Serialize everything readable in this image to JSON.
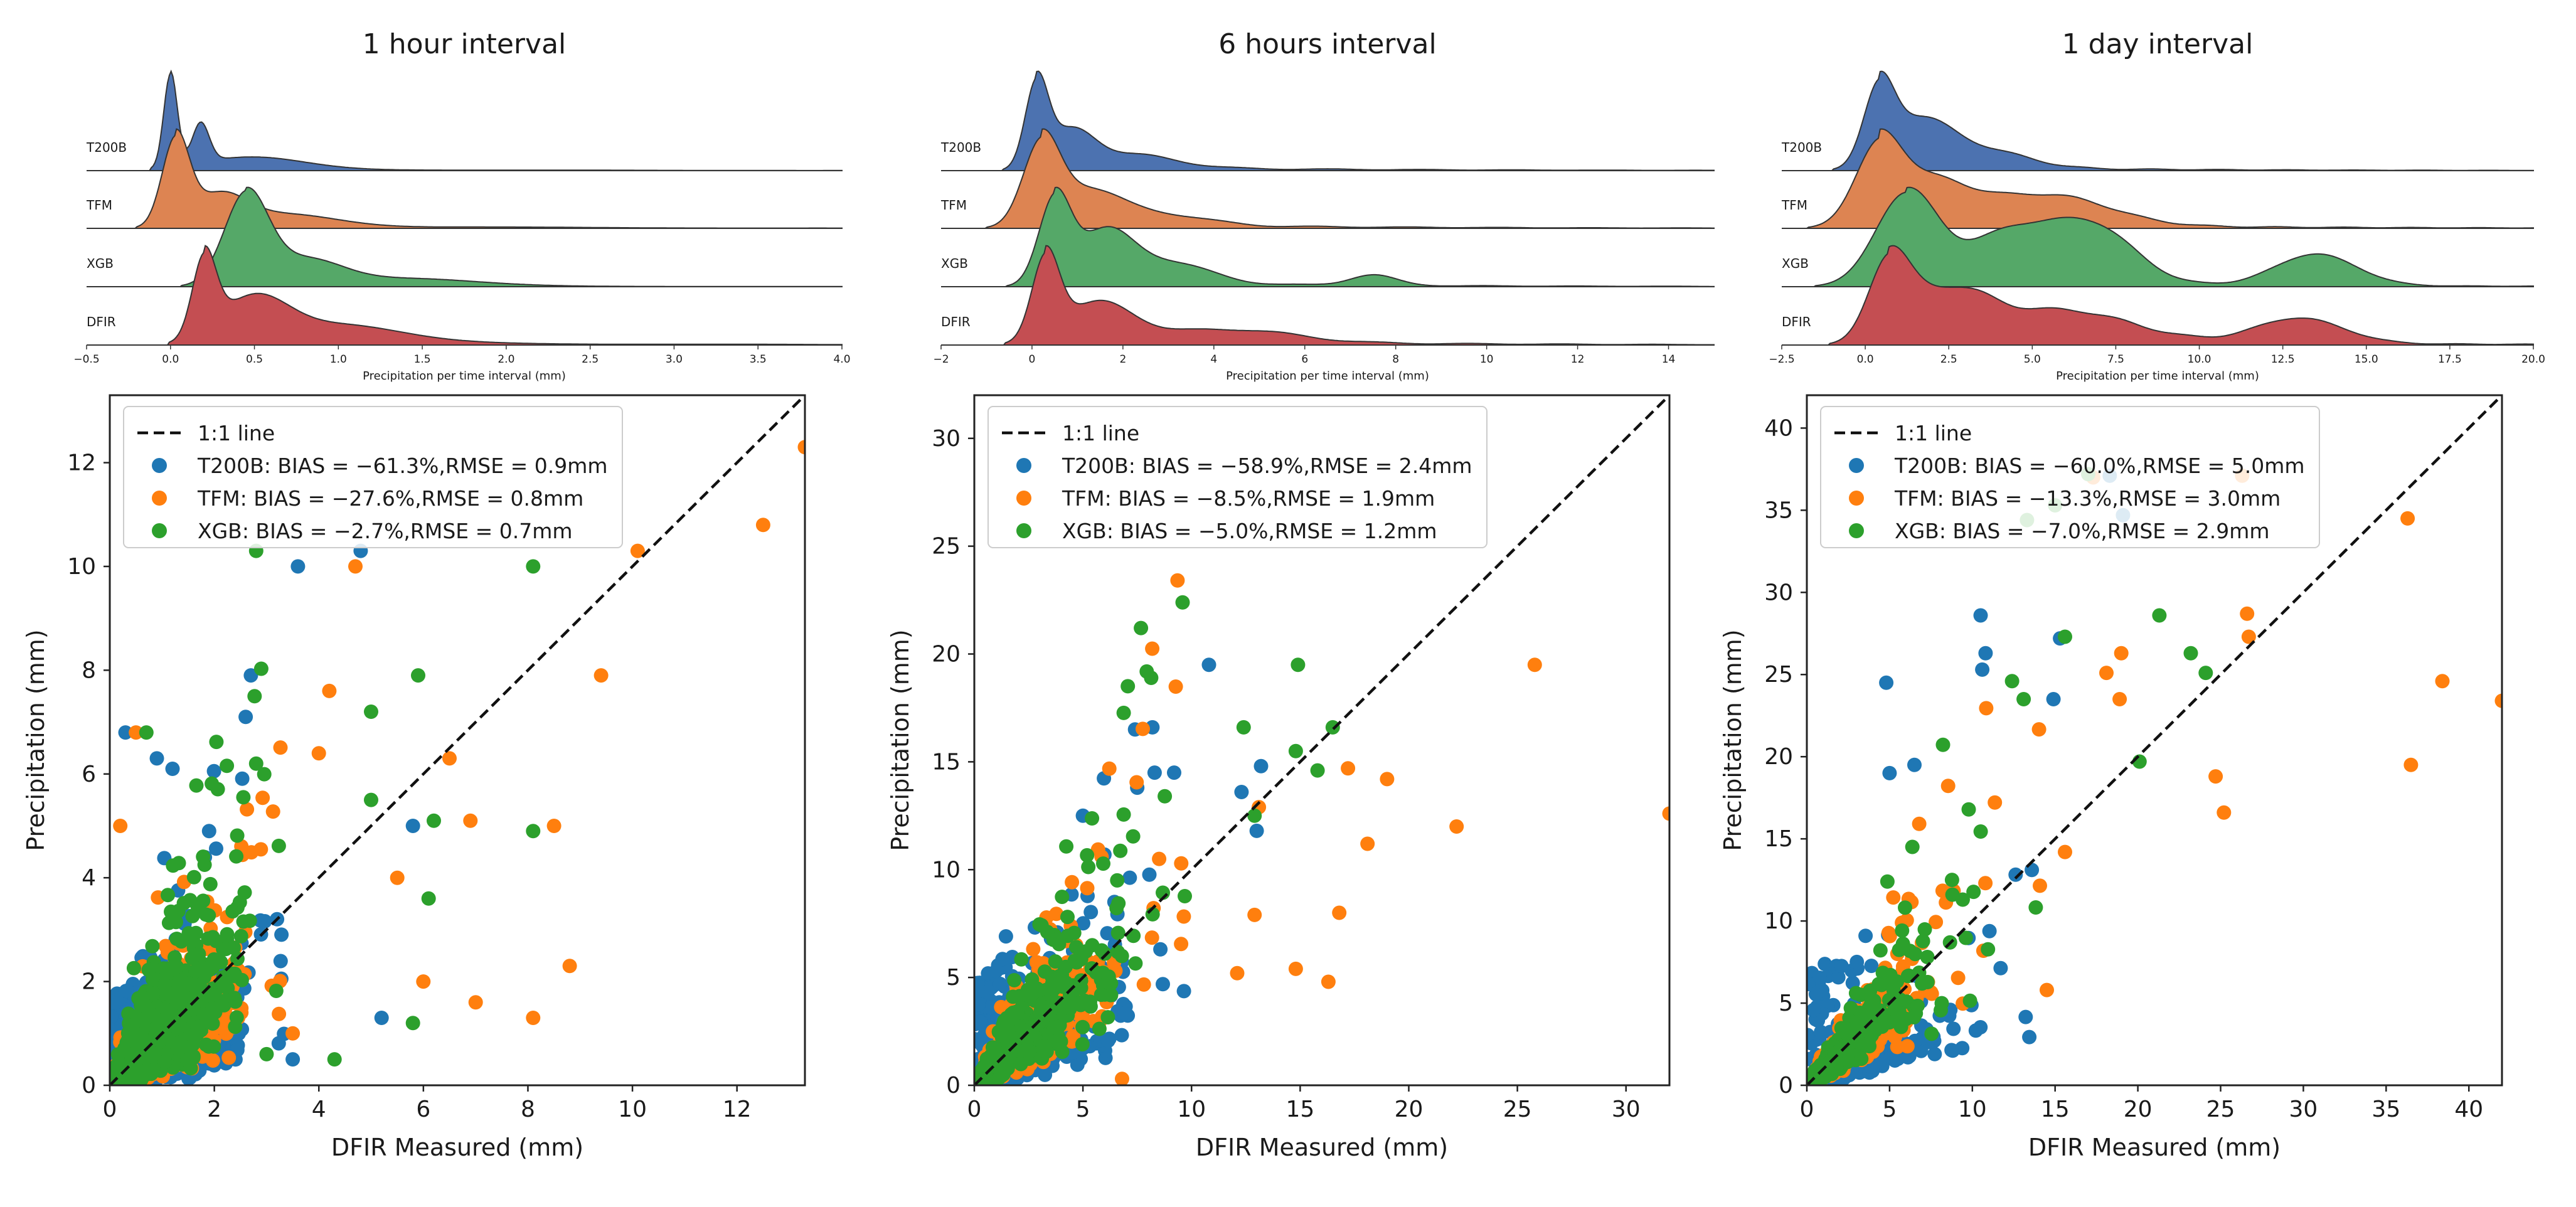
{
  "colors": {
    "T200B": "#1f77b4",
    "TFM": "#ff7f0e",
    "XGB": "#2ca02c",
    "ridge_T200B": "#4c72b0",
    "ridge_TFM": "#dd8452",
    "ridge_XGB": "#55a868",
    "ridge_DFIR": "#c44e52"
  },
  "chart_data": [
    {
      "type": "scatter",
      "title": "1 hour interval",
      "xlabel": "DFIR Measured (mm)",
      "ylabel": "Precipitation (mm)",
      "xlim": [
        0,
        13.3
      ],
      "ylim": [
        0,
        13.3
      ],
      "xticks": [
        0,
        2,
        4,
        6,
        8,
        10,
        12
      ],
      "yticks": [
        0,
        2,
        4,
        6,
        8,
        10,
        12
      ],
      "legend": {
        "placement": "top-left",
        "line": "1:1 line",
        "entries": [
          {
            "series": "T200B",
            "label": "T200B: BIAS = −61.3%,RMSE = 0.9mm"
          },
          {
            "series": "TFM",
            "label": "TFM: BIAS = −27.6%,RMSE = 0.8mm"
          },
          {
            "series": "XGB",
            "label": "XGB: BIAS = −2.7%,RMSE = 0.7mm"
          }
        ]
      },
      "ridge": {
        "xlabel": "Precipitation per time interval (mm)",
        "xlim": [
          -0.5,
          4.0
        ],
        "xticks": [
          "−0.5",
          "0.0",
          "0.5",
          "1.0",
          "1.5",
          "2.0",
          "2.5",
          "3.0",
          "3.5",
          "4.0"
        ],
        "rows": [
          {
            "name": "T200B",
            "peaks": [
              {
                "x": 0.0,
                "h": 1.0,
                "w": 0.04
              },
              {
                "x": 0.18,
                "h": 0.42,
                "w": 0.05
              },
              {
                "x": 0.5,
                "h": 0.12,
                "w": 0.3
              }
            ],
            "tail": 0.03,
            "tailScale": 1.2
          },
          {
            "name": "TFM",
            "peaks": [
              {
                "x": 0.03,
                "h": 0.9,
                "w": 0.08
              },
              {
                "x": 0.3,
                "h": 0.28,
                "w": 0.15
              },
              {
                "x": 0.7,
                "h": 0.12,
                "w": 0.3
              }
            ],
            "tail": 0.05,
            "tailScale": 1.3
          },
          {
            "name": "XGB",
            "peaks": [
              {
                "x": 0.45,
                "h": 0.9,
                "w": 0.13
              },
              {
                "x": 0.8,
                "h": 0.25,
                "w": 0.22
              },
              {
                "x": 1.4,
                "h": 0.07,
                "w": 0.4
              }
            ],
            "tail": 0.03,
            "tailScale": 1.1
          },
          {
            "name": "DFIR",
            "peaks": [
              {
                "x": 0.2,
                "h": 0.85,
                "w": 0.07
              },
              {
                "x": 0.5,
                "h": 0.45,
                "w": 0.2
              },
              {
                "x": 1.0,
                "h": 0.18,
                "w": 0.35
              }
            ],
            "tail": 0.08,
            "tailScale": 1.3
          }
        ]
      },
      "gen": {
        "n": 1600,
        "lam": 1.0,
        "maxx": 2.6,
        "seed": 11,
        "ratio": {
          "T200B": 0.4,
          "TFM": 0.73,
          "XGB": 1.0
        },
        "sigma": 0.5,
        "nOut": 40
      },
      "extras": {
        "T200B": [
          [
            0.3,
            6.8
          ],
          [
            0.9,
            6.3
          ],
          [
            1.2,
            6.1
          ],
          [
            2.7,
            7.9
          ],
          [
            2.6,
            7.1
          ],
          [
            3.6,
            10.0
          ],
          [
            4.8,
            10.3
          ],
          [
            5.8,
            5.0
          ],
          [
            1.9,
            4.9
          ],
          [
            3.2,
            3.2
          ],
          [
            5.2,
            1.3
          ],
          [
            3.5,
            0.5
          ]
        ],
        "TFM": [
          [
            0.2,
            5.0
          ],
          [
            0.5,
            6.8
          ],
          [
            4.2,
            7.6
          ],
          [
            4.7,
            10.0
          ],
          [
            4.0,
            6.4
          ],
          [
            5.5,
            4.0
          ],
          [
            6.0,
            2.0
          ],
          [
            6.5,
            6.3
          ],
          [
            6.9,
            5.1
          ],
          [
            7.0,
            1.6
          ],
          [
            8.5,
            5.0
          ],
          [
            8.8,
            2.3
          ],
          [
            8.1,
            1.3
          ],
          [
            9.4,
            7.9
          ],
          [
            10.1,
            10.3
          ],
          [
            12.5,
            10.8
          ],
          [
            13.3,
            12.3
          ],
          [
            3.5,
            1.0
          ]
        ],
        "XGB": [
          [
            0.7,
            6.8
          ],
          [
            2.8,
            10.3
          ],
          [
            2.8,
            6.2
          ],
          [
            5.0,
            7.2
          ],
          [
            5.0,
            5.5
          ],
          [
            5.9,
            7.9
          ],
          [
            6.1,
            3.6
          ],
          [
            5.8,
            1.2
          ],
          [
            4.3,
            0.5
          ],
          [
            8.1,
            4.9
          ],
          [
            8.1,
            10.0
          ],
          [
            6.2,
            5.1
          ],
          [
            3.0,
            0.6
          ]
        ]
      }
    },
    {
      "type": "scatter",
      "title": "6 hours interval",
      "xlabel": "DFIR Measured (mm)",
      "ylabel": "Precipitation (mm)",
      "xlim": [
        0,
        32
      ],
      "ylim": [
        0,
        32
      ],
      "xticks": [
        0,
        5,
        10,
        15,
        20,
        25,
        30
      ],
      "yticks": [
        0,
        5,
        10,
        15,
        20,
        25,
        30
      ],
      "legend": {
        "placement": "top-left",
        "line": "1:1 line",
        "entries": [
          {
            "series": "T200B",
            "label": "T200B: BIAS = −58.9%,RMSE = 2.4mm"
          },
          {
            "series": "TFM",
            "label": "TFM: BIAS = −8.5%,RMSE = 1.9mm"
          },
          {
            "series": "XGB",
            "label": "XGB: BIAS = −5.0%,RMSE = 1.2mm"
          }
        ]
      },
      "ridge": {
        "xlabel": "Precipitation per time interval (mm)",
        "xlim": [
          -2,
          15
        ],
        "xticks": [
          "−2",
          "0",
          "2",
          "4",
          "6",
          "8",
          "10",
          "12",
          "14"
        ],
        "rows": [
          {
            "name": "T200B",
            "peaks": [
              {
                "x": 0.1,
                "h": 1.0,
                "w": 0.25
              },
              {
                "x": 0.9,
                "h": 0.42,
                "w": 0.5
              },
              {
                "x": 2.3,
                "h": 0.15,
                "w": 0.9
              }
            ],
            "tail": 0.06,
            "tailScale": 5.0
          },
          {
            "name": "TFM",
            "peaks": [
              {
                "x": 0.2,
                "h": 0.85,
                "w": 0.4
              },
              {
                "x": 1.2,
                "h": 0.35,
                "w": 0.7
              },
              {
                "x": 2.8,
                "h": 0.12,
                "w": 1.0
              }
            ],
            "tail": 0.06,
            "tailScale": 5.0
          },
          {
            "name": "XGB",
            "peaks": [
              {
                "x": 0.5,
                "h": 0.8,
                "w": 0.35
              },
              {
                "x": 1.6,
                "h": 0.45,
                "w": 0.6
              },
              {
                "x": 3.0,
                "h": 0.2,
                "w": 0.9
              },
              {
                "x": 7.5,
                "h": 0.1,
                "w": 0.5
              }
            ],
            "tail": 0.05,
            "tailScale": 5.0
          },
          {
            "name": "DFIR",
            "peaks": [
              {
                "x": 0.3,
                "h": 0.8,
                "w": 0.3
              },
              {
                "x": 1.5,
                "h": 0.35,
                "w": 0.8
              },
              {
                "x": 4.5,
                "h": 0.12,
                "w": 1.3
              }
            ],
            "tail": 0.08,
            "tailScale": 5.0
          }
        ]
      },
      "gen": {
        "n": 900,
        "lam": 2.6,
        "maxx": 7.5,
        "seed": 23,
        "ratio": {
          "T200B": 0.45,
          "TFM": 0.9,
          "XGB": 1.0
        },
        "sigma": 0.35,
        "nOut": 30
      },
      "extras": {
        "T200B": [
          [
            10.8,
            19.5
          ],
          [
            7.4,
            16.5
          ],
          [
            8.2,
            16.6
          ],
          [
            8.3,
            14.5
          ],
          [
            7.5,
            13.8
          ],
          [
            9.2,
            14.5
          ],
          [
            5.0,
            12.5
          ],
          [
            12.3,
            13.6
          ],
          [
            13.2,
            14.8
          ],
          [
            13.0,
            11.8
          ]
        ],
        "TFM": [
          [
            25.8,
            19.5
          ],
          [
            32.0,
            12.6
          ],
          [
            22.2,
            12.0
          ],
          [
            18.1,
            11.2
          ],
          [
            17.2,
            14.7
          ],
          [
            19.0,
            14.2
          ],
          [
            16.8,
            8.0
          ],
          [
            14.8,
            5.4
          ],
          [
            12.1,
            5.2
          ],
          [
            12.9,
            7.9
          ],
          [
            13.1,
            12.9
          ],
          [
            16.3,
            4.8
          ],
          [
            6.8,
            0.3
          ]
        ],
        "XGB": [
          [
            14.9,
            19.5
          ],
          [
            16.5,
            16.6
          ],
          [
            14.8,
            15.5
          ],
          [
            12.4,
            16.6
          ],
          [
            12.9,
            12.5
          ],
          [
            15.8,
            14.6
          ]
        ]
      }
    },
    {
      "type": "scatter",
      "title": "1 day interval",
      "xlabel": "DFIR Measured (mm)",
      "ylabel": "Precipitation (mm)",
      "xlim": [
        0,
        42
      ],
      "ylim": [
        0,
        42
      ],
      "xticks": [
        0,
        5,
        10,
        15,
        20,
        25,
        30,
        35,
        40
      ],
      "yticks": [
        0,
        5,
        10,
        15,
        20,
        25,
        30,
        35,
        40
      ],
      "legend": {
        "placement": "top-left",
        "line": "1:1 line",
        "entries": [
          {
            "series": "T200B",
            "label": "T200B: BIAS = −60.0%,RMSE = 5.0mm"
          },
          {
            "series": "TFM",
            "label": "TFM: BIAS = −13.3%,RMSE = 3.0mm"
          },
          {
            "series": "XGB",
            "label": "XGB: BIAS = −7.0%,RMSE = 2.9mm"
          }
        ]
      },
      "ridge": {
        "xlabel": "Precipitation per time interval (mm)",
        "xlim": [
          -2.5,
          20.0
        ],
        "xticks": [
          "−2.5",
          "0.0",
          "2.5",
          "5.0",
          "7.5",
          "10.0",
          "12.5",
          "15.0",
          "17.5",
          "20.0"
        ],
        "rows": [
          {
            "name": "T200B",
            "peaks": [
              {
                "x": 0.4,
                "h": 1.0,
                "w": 0.45
              },
              {
                "x": 1.6,
                "h": 0.6,
                "w": 0.9
              },
              {
                "x": 3.5,
                "h": 0.25,
                "w": 1.3
              }
            ],
            "tail": 0.07,
            "tailScale": 6.0
          },
          {
            "name": "TFM",
            "peaks": [
              {
                "x": 0.4,
                "h": 0.85,
                "w": 0.7
              },
              {
                "x": 2.0,
                "h": 0.45,
                "w": 1.2
              },
              {
                "x": 5.5,
                "h": 0.35,
                "w": 1.8
              }
            ],
            "tail": 0.08,
            "tailScale": 7.0
          },
          {
            "name": "XGB",
            "peaks": [
              {
                "x": 1.2,
                "h": 0.85,
                "w": 0.9
              },
              {
                "x": 4.5,
                "h": 0.5,
                "w": 1.5
              },
              {
                "x": 7.0,
                "h": 0.45,
                "w": 1.2
              },
              {
                "x": 13.5,
                "h": 0.3,
                "w": 1.2
              }
            ],
            "tail": 0.05,
            "tailScale": 8.0
          },
          {
            "name": "DFIR",
            "peaks": [
              {
                "x": 0.7,
                "h": 0.75,
                "w": 0.6
              },
              {
                "x": 2.5,
                "h": 0.45,
                "w": 1.2
              },
              {
                "x": 6.0,
                "h": 0.3,
                "w": 2.0
              },
              {
                "x": 13.0,
                "h": 0.25,
                "w": 1.3
              }
            ],
            "tail": 0.08,
            "tailScale": 8.0
          }
        ]
      },
      "gen": {
        "n": 450,
        "lam": 3.6,
        "maxx": 11,
        "seed": 37,
        "ratio": {
          "T200B": 0.4,
          "TFM": 0.87,
          "XGB": 0.93
        },
        "sigma": 0.3,
        "nOut": 20
      },
      "extras": {
        "T200B": [
          [
            10.5,
            28.6
          ],
          [
            10.8,
            26.3
          ],
          [
            10.6,
            25.3
          ],
          [
            15.3,
            27.2
          ],
          [
            14.9,
            23.5
          ],
          [
            18.3,
            37.1
          ],
          [
            19.1,
            34.7
          ],
          [
            4.8,
            24.5
          ],
          [
            5.0,
            19.0
          ],
          [
            6.5,
            19.5
          ]
        ],
        "TFM": [
          [
            36.3,
            34.5
          ],
          [
            38.4,
            24.6
          ],
          [
            42.0,
            23.4
          ],
          [
            36.5,
            19.5
          ],
          [
            26.6,
            28.7
          ],
          [
            26.7,
            27.3
          ],
          [
            24.7,
            18.8
          ],
          [
            25.2,
            16.6
          ],
          [
            18.1,
            25.1
          ],
          [
            19.0,
            26.3
          ],
          [
            18.9,
            23.5
          ],
          [
            26.3,
            37.1
          ],
          [
            17.3,
            37.0
          ],
          [
            15.6,
            14.2
          ],
          [
            14.5,
            5.8
          ]
        ],
        "XGB": [
          [
            21.3,
            28.6
          ],
          [
            23.2,
            26.3
          ],
          [
            24.1,
            25.1
          ],
          [
            15.6,
            27.3
          ],
          [
            12.4,
            24.6
          ],
          [
            13.1,
            23.5
          ],
          [
            20.1,
            19.7
          ],
          [
            13.3,
            34.4
          ],
          [
            15.0,
            35.3
          ],
          [
            17.0,
            37.2
          ]
        ]
      }
    }
  ]
}
